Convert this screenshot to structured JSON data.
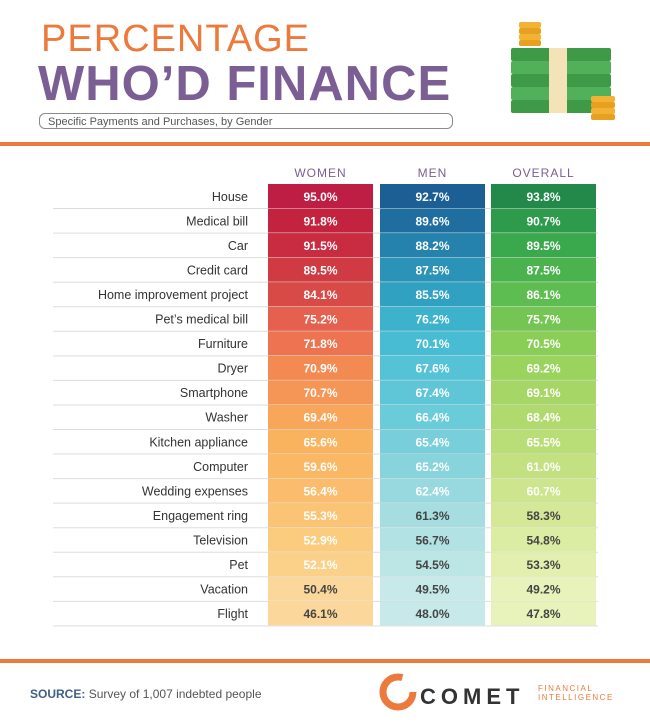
{
  "header": {
    "title_line1": "PERCENTAGE",
    "title_line2": "WHO’D FINANCE",
    "subtitle": "Specific Payments and Purchases, by Gender"
  },
  "footer": {
    "source_label": "SOURCE:",
    "source_text": "Survey of 1,007 indebted people",
    "logo_word": "COMET",
    "logo_sub_line1": "FINANCIAL",
    "logo_sub_line2": "INTELLIGENCE"
  },
  "colors": {
    "accent": "#ec7a3c",
    "title_purple": "#7b5f94",
    "women": [
      "#be1e43",
      "#c3233f",
      "#c92c40",
      "#cf3a43",
      "#d84a46",
      "#e5604e",
      "#ee7350",
      "#f38a52",
      "#f69656",
      "#f8a65a",
      "#f9b35e",
      "#fab764",
      "#fbbd6d",
      "#fbc474",
      "#fbcb7e",
      "#fbd18a",
      "#fcd79c"
    ],
    "men": [
      "#1b5f94",
      "#1f6e9f",
      "#2482ad",
      "#2b92b8",
      "#31a1c2",
      "#3cb2cd",
      "#47bcd2",
      "#55c3d5",
      "#5fc6d7",
      "#6acbd9",
      "#78cfdb",
      "#88d4dd",
      "#98d9df",
      "#a5dde1",
      "#b2e2e4",
      "#bce5e6",
      "#c7e9e9"
    ],
    "overall": [
      "#23894a",
      "#2e9a4c",
      "#3aa84d",
      "#4ab34e",
      "#5dbd50",
      "#74c553",
      "#8acd57",
      "#9bd35f",
      "#a6d666",
      "#b0da6e",
      "#bade77",
      "#c3e181",
      "#cde58d",
      "#d4e898",
      "#dbeca3",
      "#e2efae",
      "#e8f2bb"
    ]
  },
  "chart_data": {
    "type": "table",
    "columns": [
      "WOMEN",
      "MEN",
      "OVERALL"
    ],
    "categories": [
      "House",
      "Medical bill",
      "Car",
      "Credit card",
      "Home improvement project",
      "Pet’s medical bill",
      "Furniture",
      "Dryer",
      "Smartphone",
      "Washer",
      "Kitchen appliance",
      "Computer",
      "Wedding expenses",
      "Engagement ring",
      "Television",
      "Pet",
      "Vacation",
      "Flight"
    ],
    "series": [
      {
        "name": "WOMEN",
        "values": [
          95.0,
          91.8,
          91.5,
          89.5,
          84.1,
          75.2,
          71.8,
          70.9,
          70.7,
          69.4,
          65.6,
          59.6,
          56.4,
          55.3,
          52.9,
          52.1,
          50.4,
          46.1
        ]
      },
      {
        "name": "MEN",
        "values": [
          92.7,
          89.6,
          88.2,
          87.5,
          85.5,
          76.2,
          70.1,
          67.6,
          67.4,
          66.4,
          65.4,
          65.2,
          62.4,
          61.3,
          56.7,
          54.5,
          49.5,
          48.0
        ]
      },
      {
        "name": "OVERALL",
        "values": [
          93.8,
          90.7,
          89.5,
          87.5,
          86.1,
          75.7,
          70.5,
          69.2,
          69.1,
          68.4,
          65.5,
          61.0,
          60.7,
          58.3,
          54.8,
          53.3,
          49.2,
          47.8
        ]
      }
    ],
    "value_suffix": "%"
  }
}
